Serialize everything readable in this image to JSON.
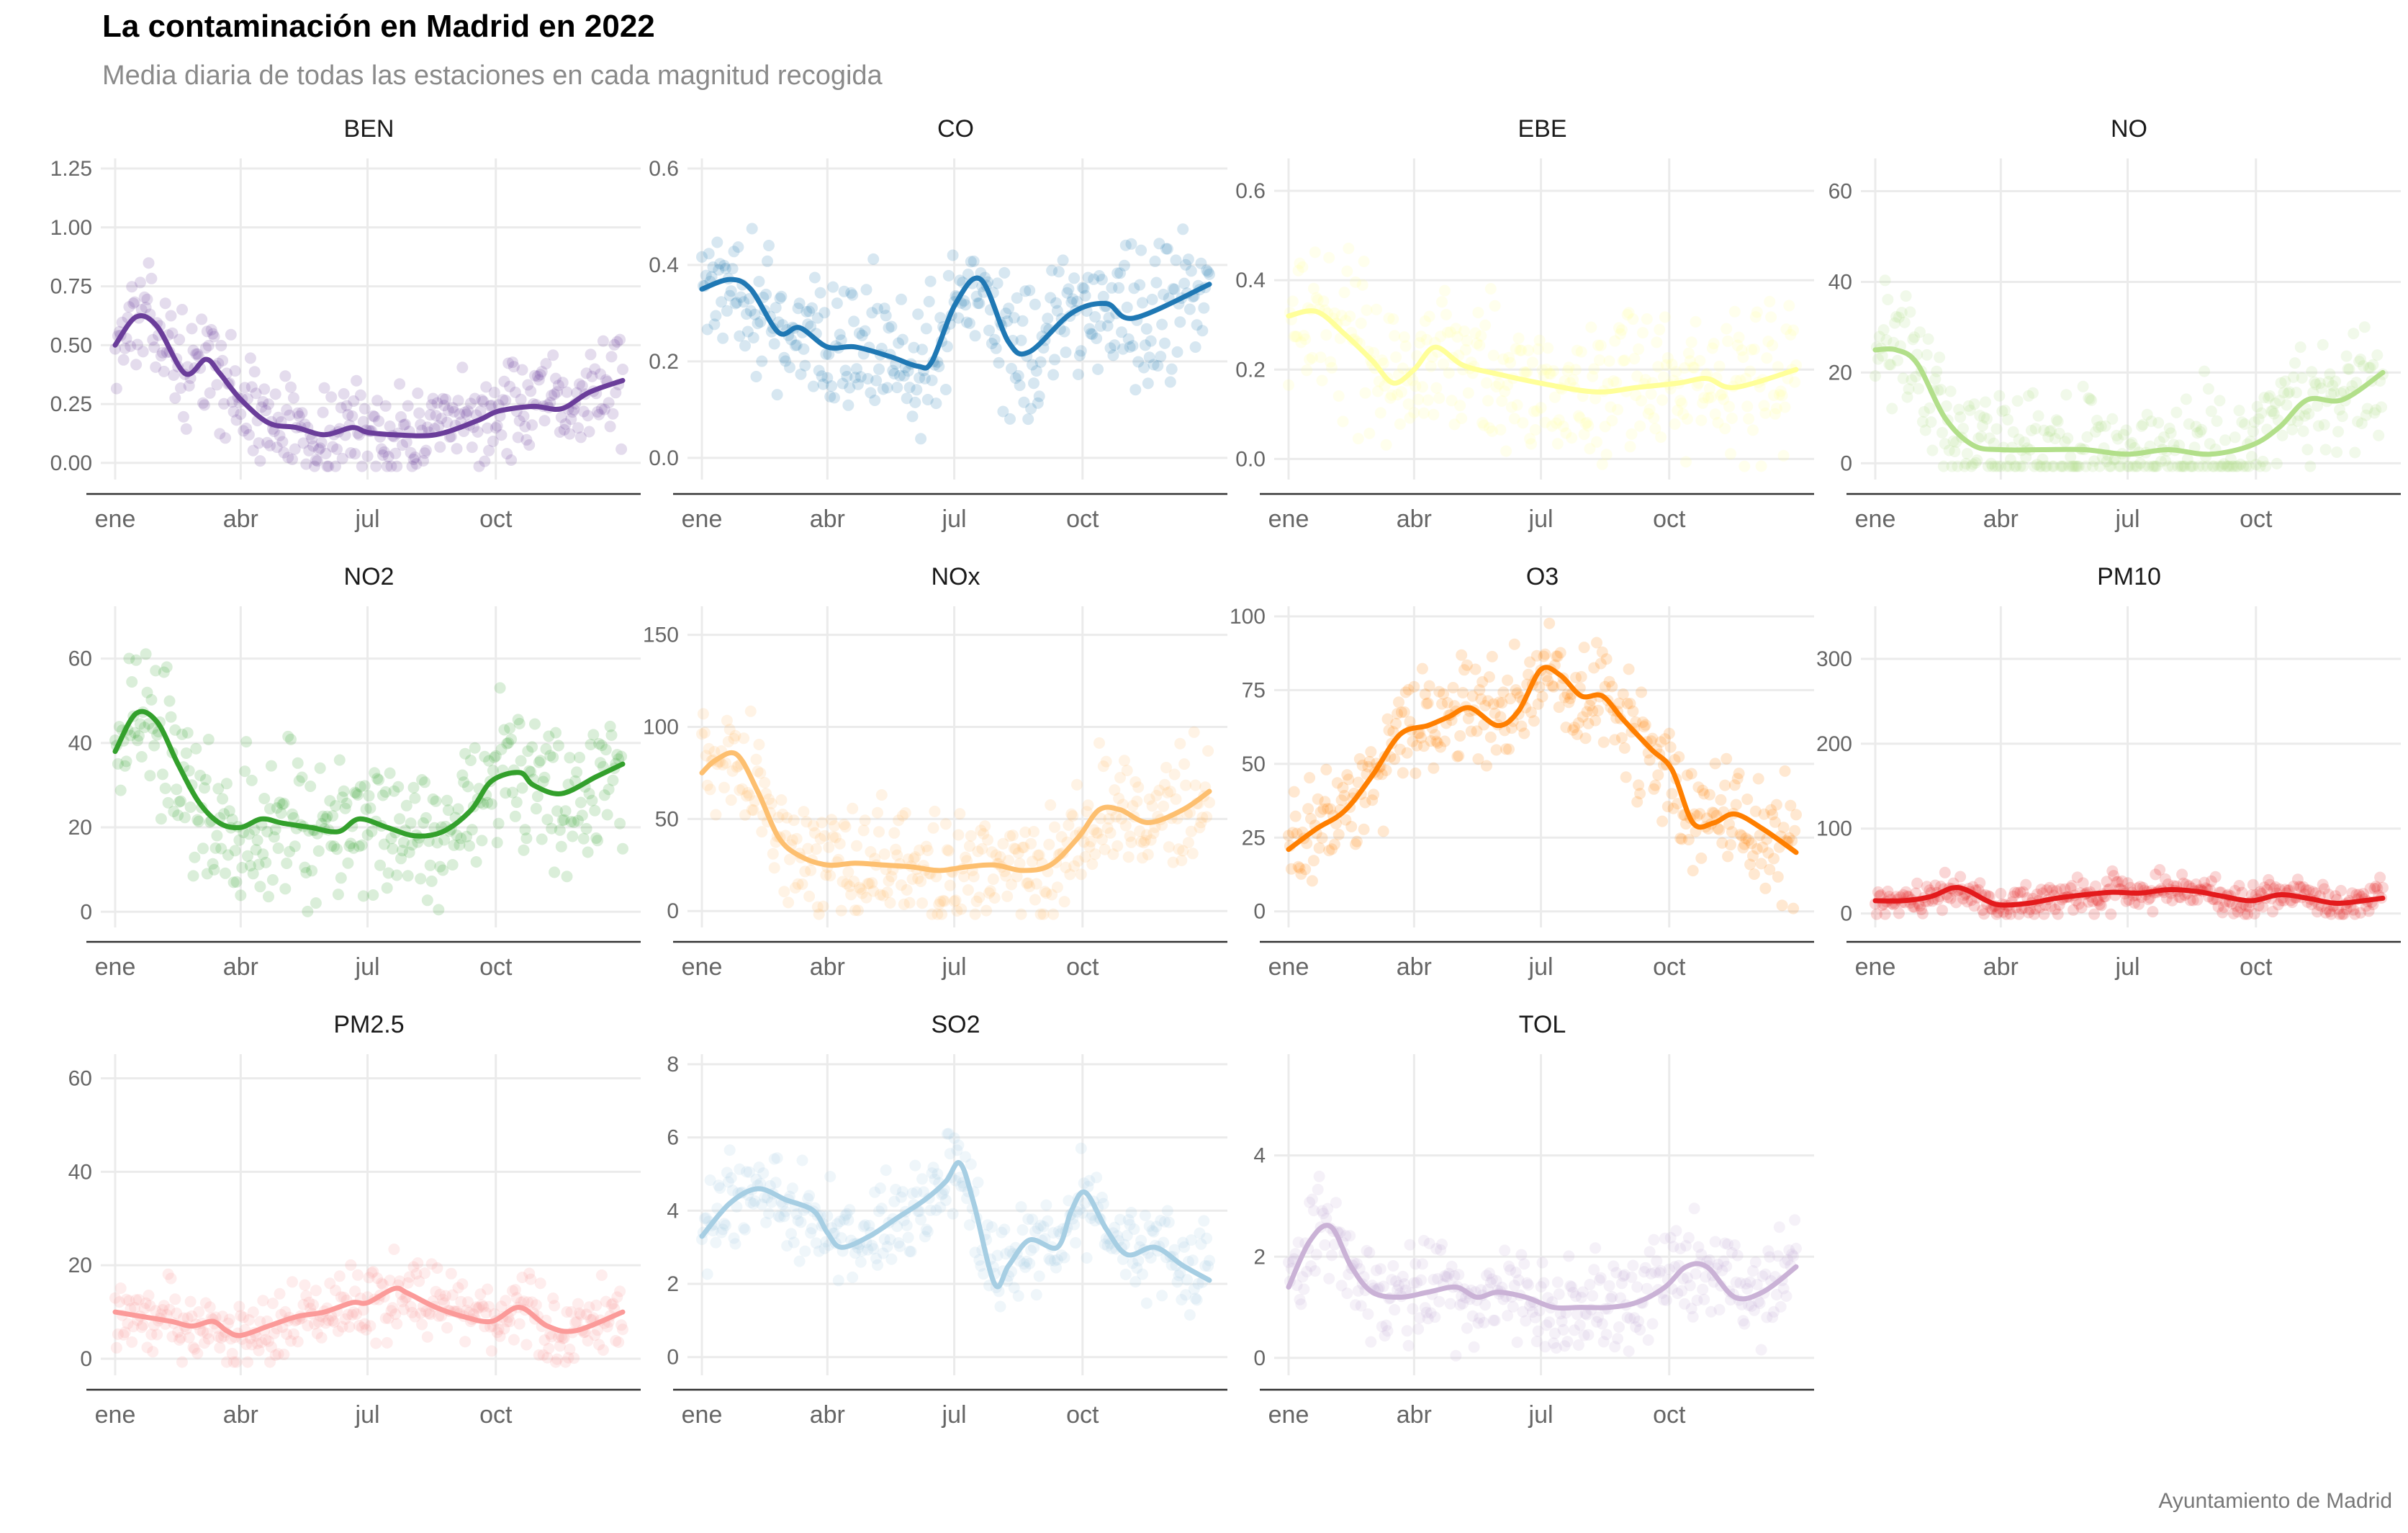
{
  "title": "La contaminación en Madrid en 2022",
  "subtitle": "Media diaria de todas las estaciones en cada magnitud recogida",
  "caption": "Ayuntamiento de Madrid",
  "chart_data": {
    "type": "scatter",
    "facets_note": "daily mean scatter per magnitude with smoothed trend line",
    "x_ticks": [
      "ene",
      "abr",
      "jul",
      "oct"
    ],
    "x_tick_days": [
      0,
      90,
      181,
      273
    ],
    "x_range_days": [
      0,
      364
    ],
    "panels": [
      {
        "name": "BEN",
        "color": "#6a3d9a",
        "ylim": [
          -0.04,
          1.25
        ],
        "yticks": [
          0,
          0.25,
          0.5,
          0.75,
          1.0,
          1.25
        ],
        "ytick_labels": [
          "0.00",
          "0.25",
          "0.50",
          "0.75",
          "1.00",
          "1.25"
        ],
        "spread": 0.1,
        "trend_x": [
          0,
          15,
          30,
          50,
          65,
          75,
          90,
          110,
          130,
          150,
          170,
          181,
          200,
          230,
          260,
          275,
          300,
          320,
          340,
          364
        ],
        "trend_y": [
          0.5,
          0.62,
          0.58,
          0.38,
          0.44,
          0.38,
          0.27,
          0.17,
          0.15,
          0.12,
          0.15,
          0.13,
          0.12,
          0.12,
          0.18,
          0.22,
          0.24,
          0.23,
          0.3,
          0.35
        ]
      },
      {
        "name": "CO",
        "color": "#1f78b4",
        "ylim": [
          -0.03,
          0.6
        ],
        "yticks": [
          0,
          0.2,
          0.4,
          0.6
        ],
        "ytick_labels": [
          "0.0",
          "0.2",
          "0.4",
          "0.6"
        ],
        "spread": 0.07,
        "trend_x": [
          0,
          20,
          35,
          55,
          70,
          90,
          110,
          135,
          155,
          165,
          182,
          200,
          220,
          235,
          265,
          290,
          310,
          364
        ],
        "trend_y": [
          0.35,
          0.37,
          0.35,
          0.26,
          0.27,
          0.23,
          0.23,
          0.21,
          0.19,
          0.2,
          0.32,
          0.37,
          0.24,
          0.22,
          0.3,
          0.32,
          0.29,
          0.36
        ]
      },
      {
        "name": "EBE",
        "color": "#ffff99",
        "ylim": [
          -0.03,
          0.65
        ],
        "yticks": [
          0,
          0.2,
          0.4,
          0.6
        ],
        "ytick_labels": [
          "0.0",
          "0.2",
          "0.4",
          "0.6"
        ],
        "spread": 0.08,
        "trend_x": [
          0,
          20,
          40,
          60,
          75,
          90,
          105,
          125,
          150,
          180,
          220,
          250,
          280,
          300,
          320,
          364
        ],
        "trend_y": [
          0.32,
          0.33,
          0.28,
          0.22,
          0.17,
          0.2,
          0.25,
          0.21,
          0.19,
          0.17,
          0.15,
          0.16,
          0.17,
          0.18,
          0.16,
          0.2
        ]
      },
      {
        "name": "NO",
        "color": "#b2df8a",
        "ylim": [
          -2,
          65
        ],
        "yticks": [
          0,
          20,
          40,
          60
        ],
        "ytick_labels": [
          "0",
          "20",
          "40",
          "60"
        ],
        "spread": 7,
        "trend_x": [
          0,
          15,
          30,
          50,
          70,
          90,
          120,
          150,
          181,
          210,
          240,
          270,
          290,
          310,
          335,
          364
        ],
        "trend_y": [
          25,
          25,
          22,
          10,
          4,
          3,
          3,
          3,
          2,
          3,
          2,
          4,
          8,
          14,
          14,
          20
        ]
      },
      {
        "name": "NO2",
        "color": "#33a02c",
        "ylim": [
          -2,
          70
        ],
        "yticks": [
          0,
          20,
          40,
          60
        ],
        "ytick_labels": [
          "0",
          "20",
          "40",
          "60"
        ],
        "spread": 9,
        "trend_x": [
          0,
          15,
          30,
          45,
          60,
          75,
          90,
          105,
          120,
          140,
          160,
          175,
          195,
          215,
          235,
          255,
          270,
          290,
          300,
          320,
          345,
          364
        ],
        "trend_y": [
          38,
          47,
          45,
          35,
          26,
          21,
          20,
          22,
          21,
          20,
          19,
          22,
          20,
          18,
          19,
          24,
          31,
          33,
          30,
          28,
          32,
          35
        ]
      },
      {
        "name": "NOx",
        "color": "#fdbf6f",
        "ylim": [
          -5,
          160
        ],
        "yticks": [
          0,
          50,
          100,
          150
        ],
        "ytick_labels": [
          "0",
          "50",
          "100",
          "150"
        ],
        "spread": 15,
        "trend_x": [
          0,
          10,
          25,
          40,
          55,
          70,
          90,
          110,
          130,
          150,
          170,
          190,
          210,
          230,
          250,
          270,
          285,
          300,
          320,
          345,
          364
        ],
        "trend_y": [
          75,
          82,
          85,
          65,
          40,
          30,
          25,
          26,
          25,
          24,
          22,
          24,
          25,
          22,
          25,
          40,
          55,
          55,
          48,
          55,
          65
        ]
      },
      {
        "name": "O3",
        "color": "#ff7f00",
        "ylim": [
          -3,
          100
        ],
        "yticks": [
          0,
          25,
          50,
          75,
          100
        ],
        "ytick_labels": [
          "0",
          "25",
          "50",
          "75",
          "100"
        ],
        "spread": 9,
        "trend_x": [
          0,
          20,
          40,
          60,
          80,
          100,
          115,
          130,
          150,
          165,
          181,
          195,
          210,
          225,
          240,
          260,
          275,
          290,
          305,
          320,
          340,
          364
        ],
        "trend_y": [
          21,
          28,
          34,
          46,
          60,
          63,
          66,
          69,
          63,
          68,
          82,
          80,
          73,
          73,
          65,
          55,
          48,
          30,
          30,
          33,
          28,
          20
        ]
      },
      {
        "name": "PM10",
        "color": "#e31a1c",
        "ylim": [
          -8,
          350
        ],
        "yticks": [
          0,
          100,
          200,
          300
        ],
        "ytick_labels": [
          "0",
          "100",
          "200",
          "300"
        ],
        "spread": 10,
        "trend_x": [
          0,
          20,
          40,
          55,
          65,
          80,
          90,
          110,
          130,
          150,
          170,
          190,
          210,
          230,
          250,
          270,
          290,
          310,
          330,
          350,
          364
        ],
        "trend_y": [
          15,
          15,
          20,
          30,
          28,
          15,
          10,
          12,
          18,
          22,
          25,
          24,
          28,
          26,
          20,
          15,
          22,
          18,
          12,
          15,
          18
        ]
      },
      {
        "name": "PM2.5",
        "color": "#fb9a99",
        "ylim": [
          -2,
          63
        ],
        "yticks": [
          0,
          20,
          40,
          60
        ],
        "ytick_labels": [
          "0",
          "20",
          "40",
          "60"
        ],
        "spread": 4,
        "trend_x": [
          0,
          20,
          40,
          55,
          70,
          80,
          90,
          110,
          130,
          150,
          170,
          181,
          200,
          210,
          230,
          250,
          270,
          290,
          310,
          330,
          364
        ],
        "trend_y": [
          10,
          9,
          8,
          7,
          8,
          6,
          5,
          7,
          9,
          10,
          12,
          12,
          15,
          14,
          11,
          9,
          8,
          11,
          7,
          6,
          10
        ]
      },
      {
        "name": "SO2",
        "color": "#a6cee3",
        "ylim": [
          -0.3,
          8
        ],
        "yticks": [
          0,
          2,
          4,
          6,
          8
        ],
        "ytick_labels": [
          "0",
          "2",
          "4",
          "6",
          "8"
        ],
        "spread": 0.6,
        "trend_x": [
          0,
          20,
          40,
          60,
          80,
          90,
          100,
          120,
          140,
          160,
          175,
          185,
          195,
          210,
          220,
          235,
          255,
          265,
          275,
          290,
          305,
          325,
          345,
          364
        ],
        "trend_y": [
          3.3,
          4.2,
          4.6,
          4.3,
          4.0,
          3.4,
          3.0,
          3.3,
          3.8,
          4.3,
          4.8,
          5.3,
          4.2,
          2.0,
          2.5,
          3.2,
          3.0,
          4.0,
          4.5,
          3.5,
          2.8,
          3.0,
          2.5,
          2.1
        ]
      },
      {
        "name": "TOL",
        "color": "#cab2d6",
        "ylim": [
          -0.2,
          5.8
        ],
        "yticks": [
          0,
          2,
          4
        ],
        "ytick_labels": [
          "0",
          "2",
          "4"
        ],
        "spread": 0.5,
        "trend_x": [
          0,
          15,
          30,
          45,
          60,
          80,
          100,
          120,
          135,
          150,
          170,
          190,
          210,
          230,
          250,
          270,
          285,
          300,
          320,
          340,
          364
        ],
        "trend_y": [
          1.4,
          2.3,
          2.6,
          1.8,
          1.3,
          1.2,
          1.3,
          1.4,
          1.2,
          1.3,
          1.2,
          1.0,
          1.0,
          1.0,
          1.1,
          1.4,
          1.8,
          1.8,
          1.2,
          1.3,
          1.8
        ]
      }
    ]
  }
}
